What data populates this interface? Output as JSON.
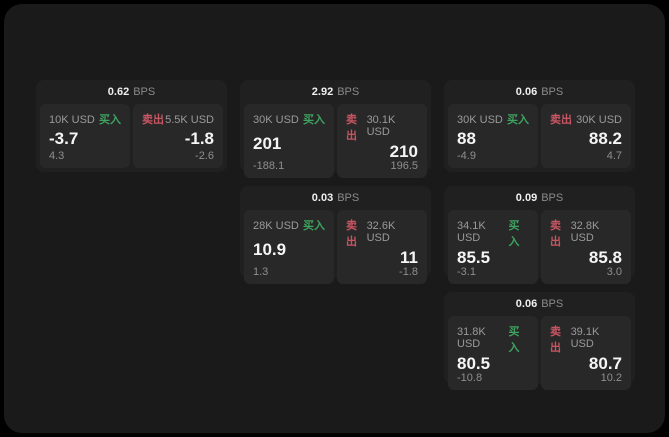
{
  "labels": {
    "bps_unit": "BPS",
    "buy": "买入",
    "sell": "卖出"
  },
  "colors": {
    "background": "#000000",
    "window": "#1a1a1a",
    "card": "#202020",
    "panel": "#282828",
    "buy_green": "#3da35f",
    "sell_red": "#c75562"
  },
  "cards": [
    {
      "bps": "0.62",
      "buy": {
        "amount": "10K USD",
        "price": "-3.7",
        "delta": "4.3"
      },
      "sell": {
        "amount": "5.5K USD",
        "price": "-1.8",
        "delta": "-2.6"
      }
    },
    {
      "bps": "2.92",
      "buy": {
        "amount": "30K USD",
        "price": "201",
        "delta": "-188.1"
      },
      "sell": {
        "amount": "30.1K USD",
        "price": "210",
        "delta": "196.5"
      }
    },
    {
      "bps": "0.06",
      "buy": {
        "amount": "30K USD",
        "price": "88",
        "delta": "-4.9"
      },
      "sell": {
        "amount": "30K USD",
        "price": "88.2",
        "delta": "4.7"
      }
    },
    {
      "bps": "0.03",
      "buy": {
        "amount": "28K USD",
        "price": "10.9",
        "delta": "1.3"
      },
      "sell": {
        "amount": "32.6K USD",
        "price": "11",
        "delta": "-1.8"
      }
    },
    {
      "bps": "0.09",
      "buy": {
        "amount": "34.1K USD",
        "price": "85.5",
        "delta": "-3.1"
      },
      "sell": {
        "amount": "32.8K USD",
        "price": "85.8",
        "delta": "3.0"
      }
    },
    {
      "bps": "0.06",
      "buy": {
        "amount": "31.8K USD",
        "price": "80.5",
        "delta": "-10.8"
      },
      "sell": {
        "amount": "39.1K USD",
        "price": "80.7",
        "delta": "10.2"
      }
    }
  ]
}
